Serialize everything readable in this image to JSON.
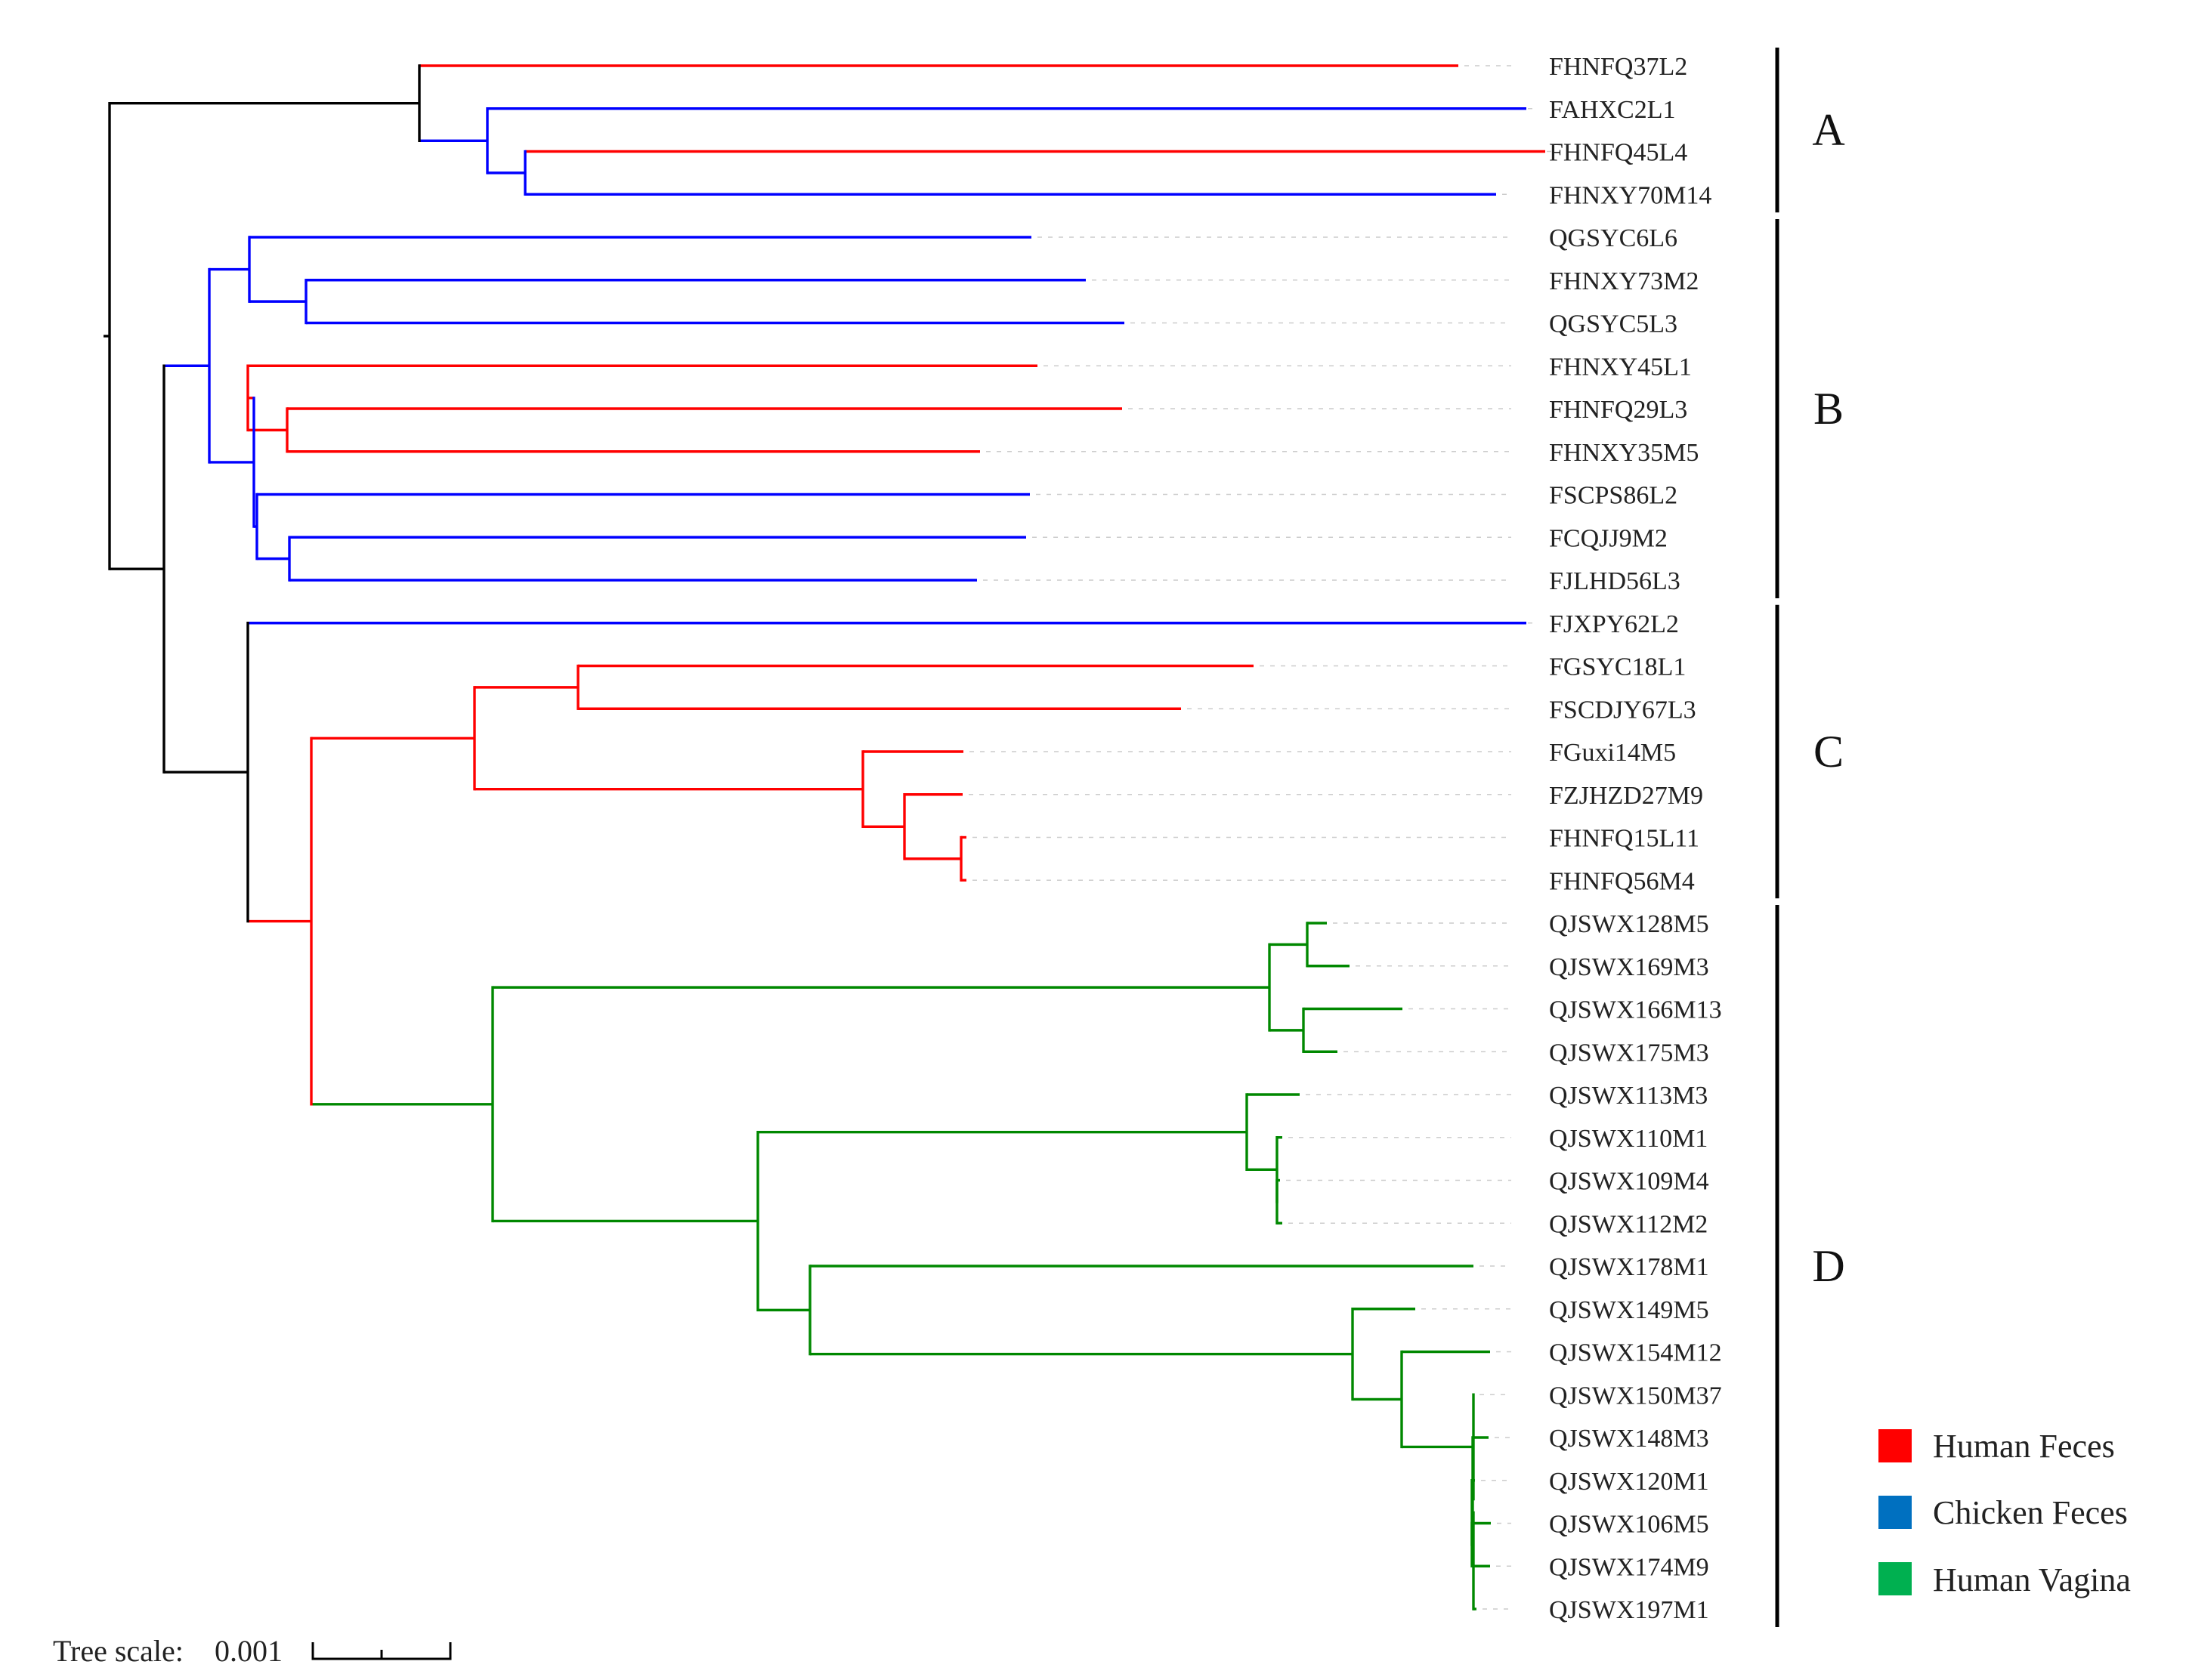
{
  "tree": {
    "leaves": [
      {
        "label": "FHNFQ37L2",
        "group": "human-feces"
      },
      {
        "label": "FAHXC2L1",
        "group": "chicken-feces"
      },
      {
        "label": "FHNFQ45L4",
        "group": "human-feces"
      },
      {
        "label": "FHNXY70M14",
        "group": "chicken-feces"
      },
      {
        "label": "QGSYC6L6",
        "group": "chicken-feces"
      },
      {
        "label": "FHNXY73M2",
        "group": "chicken-feces"
      },
      {
        "label": "QGSYC5L3",
        "group": "chicken-feces"
      },
      {
        "label": "FHNXY45L1",
        "group": "human-feces"
      },
      {
        "label": "FHNFQ29L3",
        "group": "human-feces"
      },
      {
        "label": "FHNXY35M5",
        "group": "human-feces"
      },
      {
        "label": "FSCPS86L2",
        "group": "chicken-feces"
      },
      {
        "label": "FCQJJ9M2",
        "group": "chicken-feces"
      },
      {
        "label": "FJLHD56L3",
        "group": "chicken-feces"
      },
      {
        "label": "FJXPY62L2",
        "group": "chicken-feces"
      },
      {
        "label": "FGSYC18L1",
        "group": "human-feces"
      },
      {
        "label": "FSCDJY67L3",
        "group": "human-feces"
      },
      {
        "label": "FGuxi14M5",
        "group": "human-feces"
      },
      {
        "label": "FZJHZD27M9",
        "group": "human-feces"
      },
      {
        "label": "FHNFQ15L11",
        "group": "human-feces"
      },
      {
        "label": "FHNFQ56M4",
        "group": "human-feces"
      },
      {
        "label": "QJSWX128M5",
        "group": "human-vagina"
      },
      {
        "label": "QJSWX169M3",
        "group": "human-vagina"
      },
      {
        "label": "QJSWX166M13",
        "group": "human-vagina"
      },
      {
        "label": "QJSWX175M3",
        "group": "human-vagina"
      },
      {
        "label": "QJSWX113M3",
        "group": "human-vagina"
      },
      {
        "label": "QJSWX110M1",
        "group": "human-vagina"
      },
      {
        "label": "QJSWX109M4",
        "group": "human-vagina"
      },
      {
        "label": "QJSWX112M2",
        "group": "human-vagina"
      },
      {
        "label": "QJSWX178M1",
        "group": "human-vagina"
      },
      {
        "label": "QJSWX149M5",
        "group": "human-vagina"
      },
      {
        "label": "QJSWX154M12",
        "group": "human-vagina"
      },
      {
        "label": "QJSWX150M37",
        "group": "human-vagina"
      },
      {
        "label": "QJSWX148M3",
        "group": "human-vagina"
      },
      {
        "label": "QJSWX120M1",
        "group": "human-vagina"
      },
      {
        "label": "QJSWX106M5",
        "group": "human-vagina"
      },
      {
        "label": "QJSWX174M9",
        "group": "human-vagina"
      },
      {
        "label": "QJSWX197M1",
        "group": "human-vagina"
      }
    ],
    "clades": [
      {
        "label": "A",
        "from_leaf": 0,
        "to_leaf": 3
      },
      {
        "label": "B",
        "from_leaf": 4,
        "to_leaf": 12
      },
      {
        "label": "C",
        "from_leaf": 13,
        "to_leaf": 19
      },
      {
        "label": "D",
        "from_leaf": 20,
        "to_leaf": 36
      }
    ],
    "colors": {
      "human-feces": "#ff0000",
      "chicken-feces": "#0000ff",
      "human-vagina": "#008800",
      "backbone": "#000000",
      "legend_human_feces": "#ff0000",
      "legend_chicken_feces": "#0070c0",
      "legend_human_vagina": "#00b050",
      "label_text": "#222222",
      "guide_line": "#cccccc"
    }
  },
  "legend": {
    "items": [
      {
        "label": "Human Feces",
        "key": "legend_human_feces"
      },
      {
        "label": "Chicken Feces",
        "key": "legend_chicken_feces"
      },
      {
        "label": "Human Vagina",
        "key": "legend_human_vagina"
      }
    ]
  },
  "scale_bar": {
    "label": "Tree scale:",
    "value": "0.001"
  }
}
